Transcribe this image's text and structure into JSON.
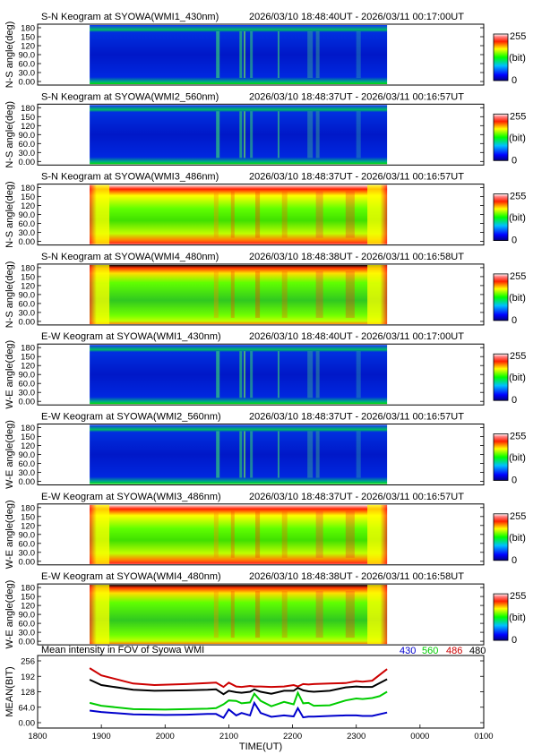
{
  "chart_data": [
    {
      "type": "heatmap",
      "title": "S-N Keogram at SYOWA(WMI1_430nm)",
      "time_range": "2026/03/10 18:48:40UT - 2026/03/11 00:17:00UT",
      "ylabel": "N-S angle(deg)",
      "yticks": [
        "180",
        "150",
        "120",
        "90.0",
        "60.0",
        "30.0",
        "0.00"
      ],
      "colorbar": {
        "max": "255",
        "unit": "(bit)",
        "min": "0"
      },
      "style": "blue"
    },
    {
      "type": "heatmap",
      "title": "S-N Keogram at SYOWA(WMI2_560nm)",
      "time_range": "2026/03/10 18:48:37UT - 2026/03/11 00:16:57UT",
      "ylabel": "N-S angle(deg)",
      "yticks": [
        "180",
        "150",
        "120",
        "90.0",
        "60.0",
        "30.0",
        "0.00"
      ],
      "colorbar": {
        "max": "255",
        "unit": "(bit)",
        "min": "0"
      },
      "style": "blue"
    },
    {
      "type": "heatmap",
      "title": "S-N Keogram at SYOWA(WMI3_486nm)",
      "time_range": "2026/03/10 18:48:37UT - 2026/03/11 00:16:57UT",
      "ylabel": "N-S angle(deg)",
      "yticks": [
        "180",
        "150",
        "120",
        "90.0",
        "60.0",
        "30.0",
        "0.00"
      ],
      "colorbar": {
        "max": "255",
        "unit": "(bit)",
        "min": "0"
      },
      "style": "bright"
    },
    {
      "type": "heatmap",
      "title": "S-N Keogram at SYOWA(WMI4_480nm)",
      "time_range": "2026/03/10 18:48:38UT - 2026/03/11 00:16:58UT",
      "ylabel": "N-S angle(deg)",
      "yticks": [
        "180",
        "150",
        "120",
        "90.0",
        "60.0",
        "30.0",
        "0.00"
      ],
      "colorbar": {
        "max": "255",
        "unit": "(bit)",
        "min": "0"
      },
      "style": "mid"
    },
    {
      "type": "heatmap",
      "title": "E-W Keogram at SYOWA(WMI1_430nm)",
      "time_range": "2026/03/10 18:48:40UT - 2026/03/11 00:17:00UT",
      "ylabel": "W-E angle(deg)",
      "yticks": [
        "180",
        "150",
        "120",
        "90.0",
        "60.0",
        "30.0",
        "0.00"
      ],
      "colorbar": {
        "max": "255",
        "unit": "(bit)",
        "min": "0"
      },
      "style": "blue"
    },
    {
      "type": "heatmap",
      "title": "E-W Keogram at SYOWA(WMI2_560nm)",
      "time_range": "2026/03/10 18:48:37UT - 2026/03/11 00:16:57UT",
      "ylabel": "W-E angle(deg)",
      "yticks": [
        "180",
        "150",
        "120",
        "90.0",
        "60.0",
        "30.0",
        "0.00"
      ],
      "colorbar": {
        "max": "255",
        "unit": "(bit)",
        "min": "0"
      },
      "style": "blue"
    },
    {
      "type": "heatmap",
      "title": "E-W Keogram at SYOWA(WMI3_486nm)",
      "time_range": "2026/03/10 18:48:37UT - 2026/03/11 00:16:57UT",
      "ylabel": "W-E angle(deg)",
      "yticks": [
        "180",
        "150",
        "120",
        "90.0",
        "60.0",
        "30.0",
        "0.00"
      ],
      "colorbar": {
        "max": "255",
        "unit": "(bit)",
        "min": "0"
      },
      "style": "bright"
    },
    {
      "type": "heatmap",
      "title": "E-W Keogram at SYOWA(WMI4_480nm)",
      "time_range": "2026/03/10 18:48:38UT - 2026/03/11 00:16:58UT",
      "ylabel": "W-E angle(deg)",
      "yticks": [
        "180",
        "150",
        "120",
        "90.0",
        "60.0",
        "30.0",
        "0.00"
      ],
      "colorbar": {
        "max": "255",
        "unit": "(bit)",
        "min": "0"
      },
      "style": "mid"
    },
    {
      "type": "line",
      "title": "Mean intensity in FOV of Syowa WMI",
      "ylabel": "MEAN(BIT)",
      "xlabel": "TIME(UT)",
      "xticks": [
        "1800",
        "1900",
        "2000",
        "2100",
        "2200",
        "2300",
        "0000",
        "0100"
      ],
      "yticks": [
        "256",
        "192",
        "128",
        "64.0",
        "0.00"
      ],
      "xlim": [
        0,
        420
      ],
      "ylim": [
        0,
        256
      ],
      "series": [
        {
          "name": "430",
          "color": "#0000cc",
          "x": [
            49,
            60,
            90,
            120,
            140,
            160,
            168,
            175,
            180,
            187,
            192,
            200,
            204,
            210,
            220,
            232,
            241,
            245,
            250,
            255,
            260,
            275,
            290,
            300,
            306,
            315,
            329
          ],
          "y": [
            50,
            44,
            34,
            32,
            33,
            36,
            36,
            20,
            55,
            30,
            40,
            30,
            82,
            40,
            24,
            30,
            26,
            60,
            22,
            25,
            25,
            28,
            30,
            30,
            28,
            28,
            42
          ]
        },
        {
          "name": "560",
          "color": "#00cc00",
          "x": [
            49,
            60,
            90,
            120,
            140,
            160,
            168,
            175,
            180,
            187,
            192,
            200,
            204,
            210,
            220,
            232,
            241,
            245,
            250,
            255,
            260,
            275,
            290,
            300,
            306,
            315,
            322,
            329
          ],
          "y": [
            82,
            70,
            56,
            54,
            56,
            58,
            60,
            76,
            92,
            90,
            80,
            84,
            120,
            90,
            68,
            86,
            76,
            124,
            80,
            82,
            70,
            72,
            92,
            100,
            98,
            102,
            110,
            128
          ]
        },
        {
          "name": "486",
          "color": "#cc0000",
          "x": [
            49,
            60,
            90,
            110,
            140,
            160,
            168,
            175,
            180,
            187,
            192,
            200,
            204,
            210,
            220,
            232,
            241,
            245,
            250,
            255,
            260,
            275,
            290,
            300,
            306,
            315,
            329
          ],
          "y": [
            226,
            196,
            162,
            156,
            160,
            164,
            166,
            148,
            166,
            150,
            148,
            152,
            150,
            150,
            148,
            150,
            156,
            150,
            160,
            158,
            160,
            162,
            164,
            172,
            170,
            174,
            222
          ]
        },
        {
          "name": "480",
          "color": "#000000",
          "x": [
            49,
            60,
            90,
            110,
            140,
            160,
            168,
            175,
            180,
            187,
            192,
            200,
            204,
            210,
            220,
            232,
            241,
            245,
            250,
            255,
            260,
            275,
            290,
            300,
            306,
            315,
            329
          ],
          "y": [
            178,
            156,
            136,
            132,
            134,
            136,
            138,
            118,
            132,
            126,
            124,
            128,
            138,
            128,
            120,
            132,
            132,
            144,
            134,
            130,
            128,
            132,
            146,
            150,
            148,
            148,
            180
          ]
        }
      ]
    }
  ]
}
